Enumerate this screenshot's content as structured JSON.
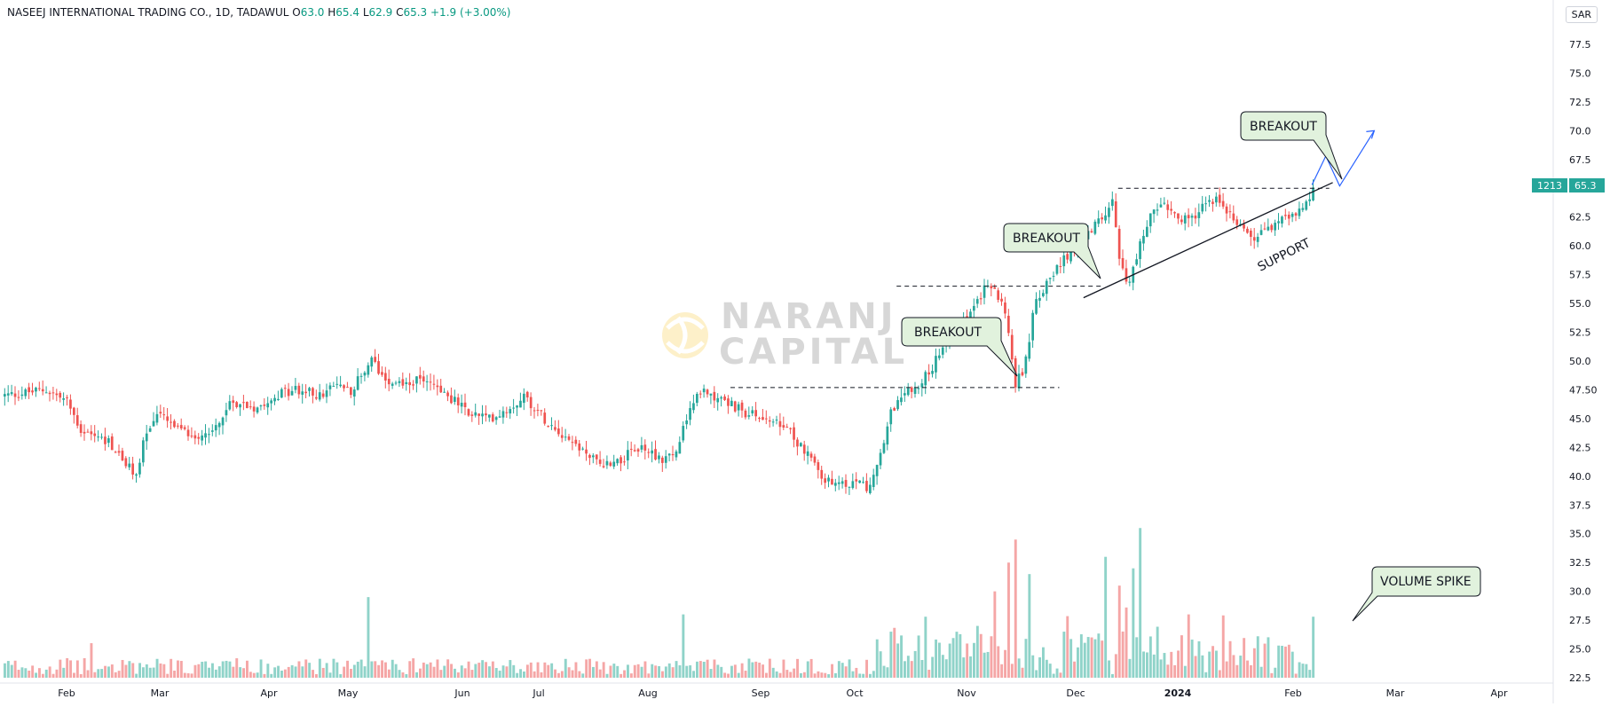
{
  "header": {
    "title": "NASEEJ INTERNATIONAL TRADING CO., 1D, TADAWUL",
    "o_label": "O",
    "o_value": "63.0",
    "h_label": "H",
    "h_value": "65.4",
    "l_label": "L",
    "l_value": "62.9",
    "c_label": "C",
    "c_value": "65.3",
    "change": "+1.9 (+3.00%)"
  },
  "currency": "SAR",
  "price_tag": {
    "symbol": "1213",
    "price": "65.3"
  },
  "watermark": {
    "line1": "NARANJ",
    "line2": "CAPITAL"
  },
  "annotations": {
    "breakout_1": "BREAKOUT",
    "breakout_2": "BREAKOUT",
    "breakout_3": "BREAKOUT",
    "support": "SUPPORT",
    "volume_spike": "VOLUME SPIKE"
  },
  "colors": {
    "up": "#26a69a",
    "down": "#ef5350",
    "up_vol": "#8fd3c9",
    "down_vol": "#f5a6a6",
    "projection": "#2962ff",
    "callout_fill": "#e1f2dd"
  },
  "chart_data": {
    "type": "candlestick",
    "y_axis": {
      "min": 22.5,
      "max": 77.5,
      "ticks": [
        "77.5",
        "75.0",
        "72.5",
        "70.0",
        "67.5",
        "65.0",
        "62.5",
        "60.0",
        "57.5",
        "55.0",
        "52.5",
        "50.0",
        "47.50",
        "45.0",
        "42.5",
        "40.0",
        "37.5",
        "35.0",
        "32.5",
        "30.0",
        "27.5",
        "25.0",
        "22.5"
      ]
    },
    "x_axis": {
      "labels": [
        "Feb",
        "Mar",
        "Apr",
        "May",
        "Jun",
        "Jul",
        "Aug",
        "Sep",
        "Oct",
        "Nov",
        "Dec",
        "2024",
        "Feb",
        "Mar",
        "Apr"
      ]
    },
    "close_trend": [
      [
        0,
        47.0
      ],
      [
        12,
        47.5
      ],
      [
        18,
        46.5
      ],
      [
        22,
        44.0
      ],
      [
        30,
        43.0
      ],
      [
        35,
        41.0
      ],
      [
        38,
        40.0
      ],
      [
        40,
        43.0
      ],
      [
        44,
        45.5
      ],
      [
        50,
        44.0
      ],
      [
        55,
        43.5
      ],
      [
        60,
        44.0
      ],
      [
        66,
        46.5
      ],
      [
        72,
        46.0
      ],
      [
        78,
        47.0
      ],
      [
        84,
        47.5
      ],
      [
        92,
        47.0
      ],
      [
        96,
        48.0
      ],
      [
        100,
        47.5
      ],
      [
        106,
        50.0
      ],
      [
        110,
        48.5
      ],
      [
        116,
        48.0
      ],
      [
        122,
        48.5
      ],
      [
        128,
        47.0
      ],
      [
        134,
        45.5
      ],
      [
        140,
        45.0
      ],
      [
        146,
        46.0
      ],
      [
        150,
        47.0
      ],
      [
        156,
        45.0
      ],
      [
        162,
        43.5
      ],
      [
        168,
        42.0
      ],
      [
        172,
        41.0
      ],
      [
        178,
        41.5
      ],
      [
        184,
        42.5
      ],
      [
        190,
        41.5
      ],
      [
        194,
        42.0
      ],
      [
        198,
        46.0
      ],
      [
        202,
        47.5
      ],
      [
        208,
        46.5
      ],
      [
        214,
        45.5
      ],
      [
        220,
        45.0
      ],
      [
        226,
        44.0
      ],
      [
        232,
        42.0
      ],
      [
        236,
        40.0
      ],
      [
        240,
        39.0
      ],
      [
        246,
        39.5
      ],
      [
        250,
        39.0
      ],
      [
        253,
        42.0
      ],
      [
        256,
        45.5
      ],
      [
        260,
        47.0
      ],
      [
        264,
        48.0
      ],
      [
        268,
        49.5
      ],
      [
        272,
        51.5
      ],
      [
        276,
        53.0
      ],
      [
        280,
        55.0
      ],
      [
        284,
        56.5
      ],
      [
        288,
        55.5
      ],
      [
        290,
        52.0
      ],
      [
        292,
        48.0
      ],
      [
        294,
        49.0
      ],
      [
        296,
        52.0
      ],
      [
        298,
        55.5
      ],
      [
        302,
        57.0
      ],
      [
        306,
        59.0
      ],
      [
        310,
        60.0
      ],
      [
        314,
        61.5
      ],
      [
        318,
        63.0
      ],
      [
        320,
        64.5
      ],
      [
        322,
        59.0
      ],
      [
        324,
        56.5
      ],
      [
        326,
        58.0
      ],
      [
        330,
        62.0
      ],
      [
        334,
        64.0
      ],
      [
        338,
        63.0
      ],
      [
        342,
        62.0
      ],
      [
        346,
        63.5
      ],
      [
        350,
        64.0
      ],
      [
        354,
        63.0
      ],
      [
        358,
        61.5
      ],
      [
        360,
        60.5
      ],
      [
        364,
        61.5
      ],
      [
        368,
        62.0
      ],
      [
        372,
        62.5
      ],
      [
        376,
        63.5
      ],
      [
        378,
        65.3
      ]
    ],
    "volume_spike_bars": [
      [
        25,
        25.5
      ],
      [
        105,
        29.5
      ],
      [
        196,
        28.0
      ],
      [
        256,
        26.5
      ],
      [
        266,
        27.8
      ],
      [
        281,
        27.0
      ],
      [
        286,
        30.0
      ],
      [
        290,
        32.5
      ],
      [
        292,
        34.5
      ],
      [
        296,
        31.5
      ],
      [
        306,
        26.5
      ],
      [
        314,
        26.0
      ],
      [
        318,
        33.0
      ],
      [
        322,
        30.5
      ],
      [
        326,
        32.0
      ],
      [
        328,
        35.5
      ],
      [
        342,
        28.0
      ],
      [
        378,
        27.8
      ]
    ],
    "levels": [
      {
        "kind": "resistance",
        "value": 47.7
      },
      {
        "kind": "resistance",
        "value": 56.5
      },
      {
        "kind": "resistance",
        "value": 65.0
      }
    ],
    "support_line": {
      "from": [
        312,
        55.5
      ],
      "to": [
        384,
        65.5
      ]
    },
    "projection": [
      [
        378,
        65.3
      ],
      [
        382,
        67.8
      ],
      [
        386,
        65.2
      ],
      [
        396,
        70.0
      ]
    ]
  }
}
